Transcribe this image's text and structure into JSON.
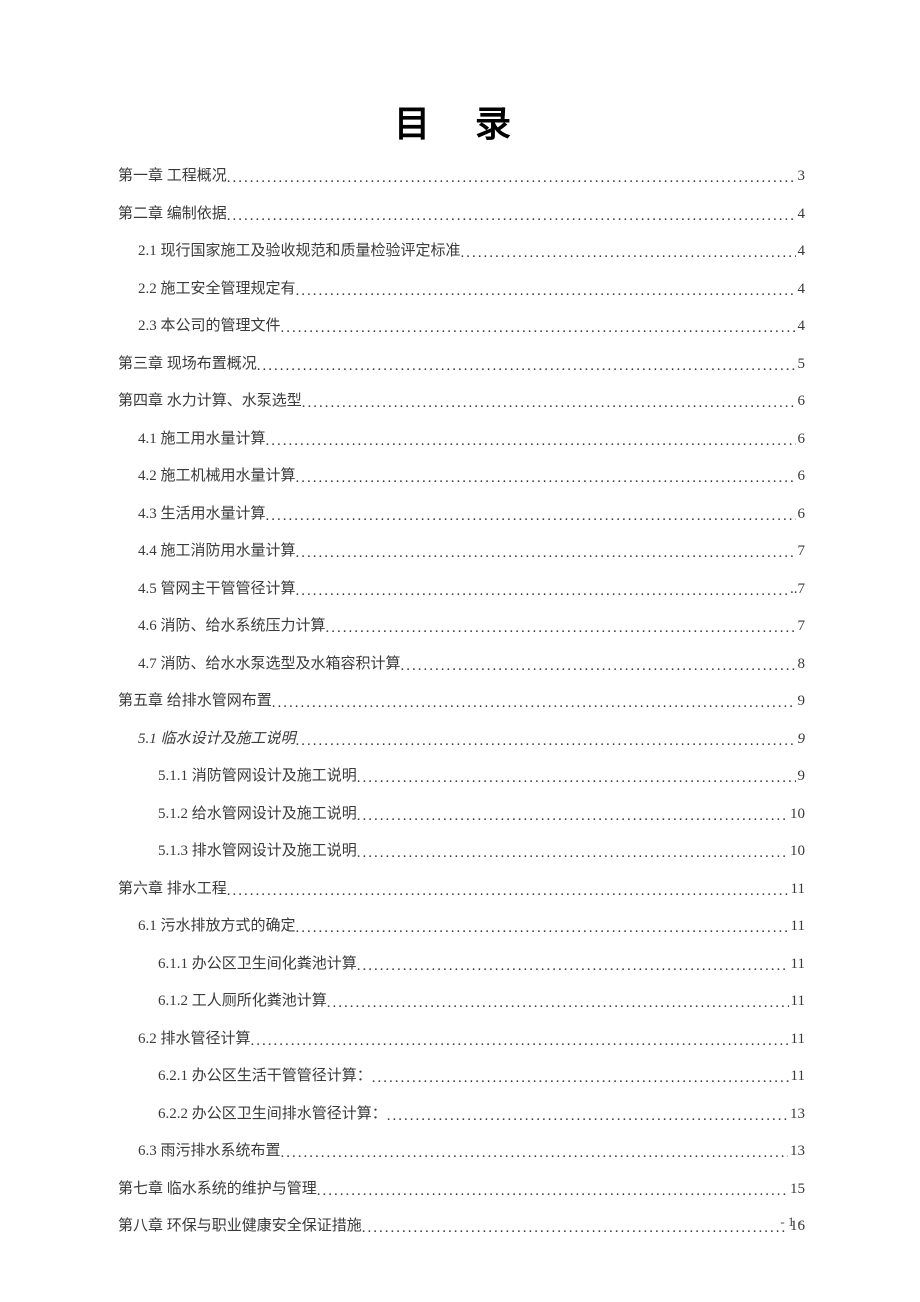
{
  "title": "目 录",
  "footer": "- 1 -",
  "text_color": "#3a3a3a",
  "title_color": "#000000",
  "background_color": "#ffffff",
  "title_fontsize": 36,
  "line_fontsize": 15,
  "entries": [
    {
      "label": "第一章 工程概况",
      "page": "3",
      "level": 0
    },
    {
      "label": "第二章 编制依据",
      "page": "4",
      "level": 0
    },
    {
      "label": "2.1 现行国家施工及验收规范和质量检验评定标准",
      "page": "4",
      "level": 1
    },
    {
      "label": "2.2 施工安全管理规定有",
      "page": "4",
      "level": 1
    },
    {
      "label": "2.3 本公司的管理文件",
      "page": "4",
      "level": 1
    },
    {
      "label": "第三章 现场布置概况",
      "page": "5",
      "level": 0
    },
    {
      "label": "第四章 水力计算、水泵选型",
      "page": "6",
      "level": 0
    },
    {
      "label": "4.1 施工用水量计算",
      "page": "6",
      "level": 1
    },
    {
      "label": "4.2 施工机械用水量计算",
      "page": "6",
      "level": 1
    },
    {
      "label": "4.3 生活用水量计算",
      "page": "6",
      "level": 1
    },
    {
      "label": "4.4 施工消防用水量计算",
      "page": "7",
      "level": 1
    },
    {
      "label": "4.5 管网主干管管径计算",
      "page": "..7",
      "level": 1
    },
    {
      "label": "4.6 消防、给水系统压力计算",
      "page": "7",
      "level": 1
    },
    {
      "label": "4.7 消防、给水水泵选型及水箱容积计算",
      "page": "8",
      "level": 1
    },
    {
      "label": "第五章 给排水管网布置",
      "page": "9",
      "level": 0
    },
    {
      "label": "5.1 临水设计及施工说明",
      "page": "9",
      "level": 1,
      "italic": true
    },
    {
      "label": "5.1.1 消防管网设计及施工说明",
      "page": "9",
      "level": 2
    },
    {
      "label": "5.1.2 给水管网设计及施工说明",
      "page": "10",
      "level": 2
    },
    {
      "label": "5.1.3 排水管网设计及施工说明",
      "page": "10",
      "level": 2
    },
    {
      "label": "第六章 排水工程",
      "page": " 11",
      "level": 0
    },
    {
      "label": "6.1 污水排放方式的确定",
      "page": "11",
      "level": 1
    },
    {
      "label": "6.1.1 办公区卫生间化粪池计算",
      "page": "11",
      "level": 2
    },
    {
      "label": "6.1.2 工人厕所化粪池计算",
      "page": "11",
      "level": 2
    },
    {
      "label": "6.2 排水管径计算",
      "page": " 11",
      "level": 1
    },
    {
      "label": "6.2.1 办公区生活干管管径计算：",
      "page": "11",
      "level": 2
    },
    {
      "label": "6.2.2 办公区卫生间排水管径计算：",
      "page": "13",
      "level": 2
    },
    {
      "label": "6.3 雨污排水系统布置",
      "page": "13",
      "level": 1
    },
    {
      "label": "第七章 临水系统的维护与管理",
      "page": "15",
      "level": 0
    },
    {
      "label": "第八章 环保与职业健康安全保证措施",
      "page": "16",
      "level": 0
    }
  ]
}
